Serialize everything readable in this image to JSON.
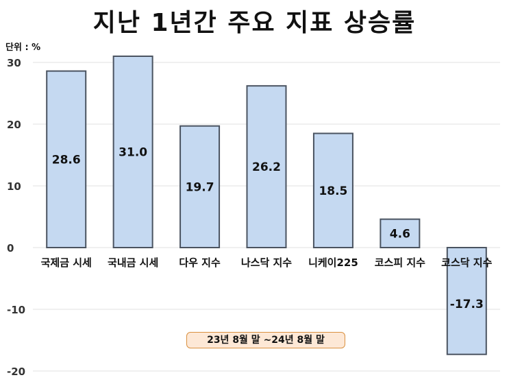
{
  "chart_data": {
    "type": "bar",
    "title": "지난 1년간 주요 지표 상승률",
    "unit_label": "단위 : %",
    "annotation": "23년 8월 말 ~24년 8월 말",
    "categories": [
      "국제금 시세",
      "국내금 시세",
      "다우 지수",
      "나스닥 지수",
      "니케이225",
      "코스피 지수",
      "코스닥 지수"
    ],
    "values": [
      28.6,
      31.0,
      19.7,
      26.2,
      18.5,
      4.6,
      -17.3
    ],
    "value_labels": [
      "28.6",
      "31.0",
      "19.7",
      "26.2",
      "18.5",
      "4.6",
      "-17.3"
    ],
    "ylim": [
      -20,
      30
    ],
    "yticks": [
      30,
      20,
      10,
      0,
      -10,
      -20
    ],
    "grid": true,
    "colors": {
      "bar_fill": "#c5d9f1",
      "bar_stroke": "#4a5360",
      "grid": "#e2e2e2",
      "annotation_border": "#d9903f",
      "annotation_fill": "#fde8d6"
    }
  }
}
